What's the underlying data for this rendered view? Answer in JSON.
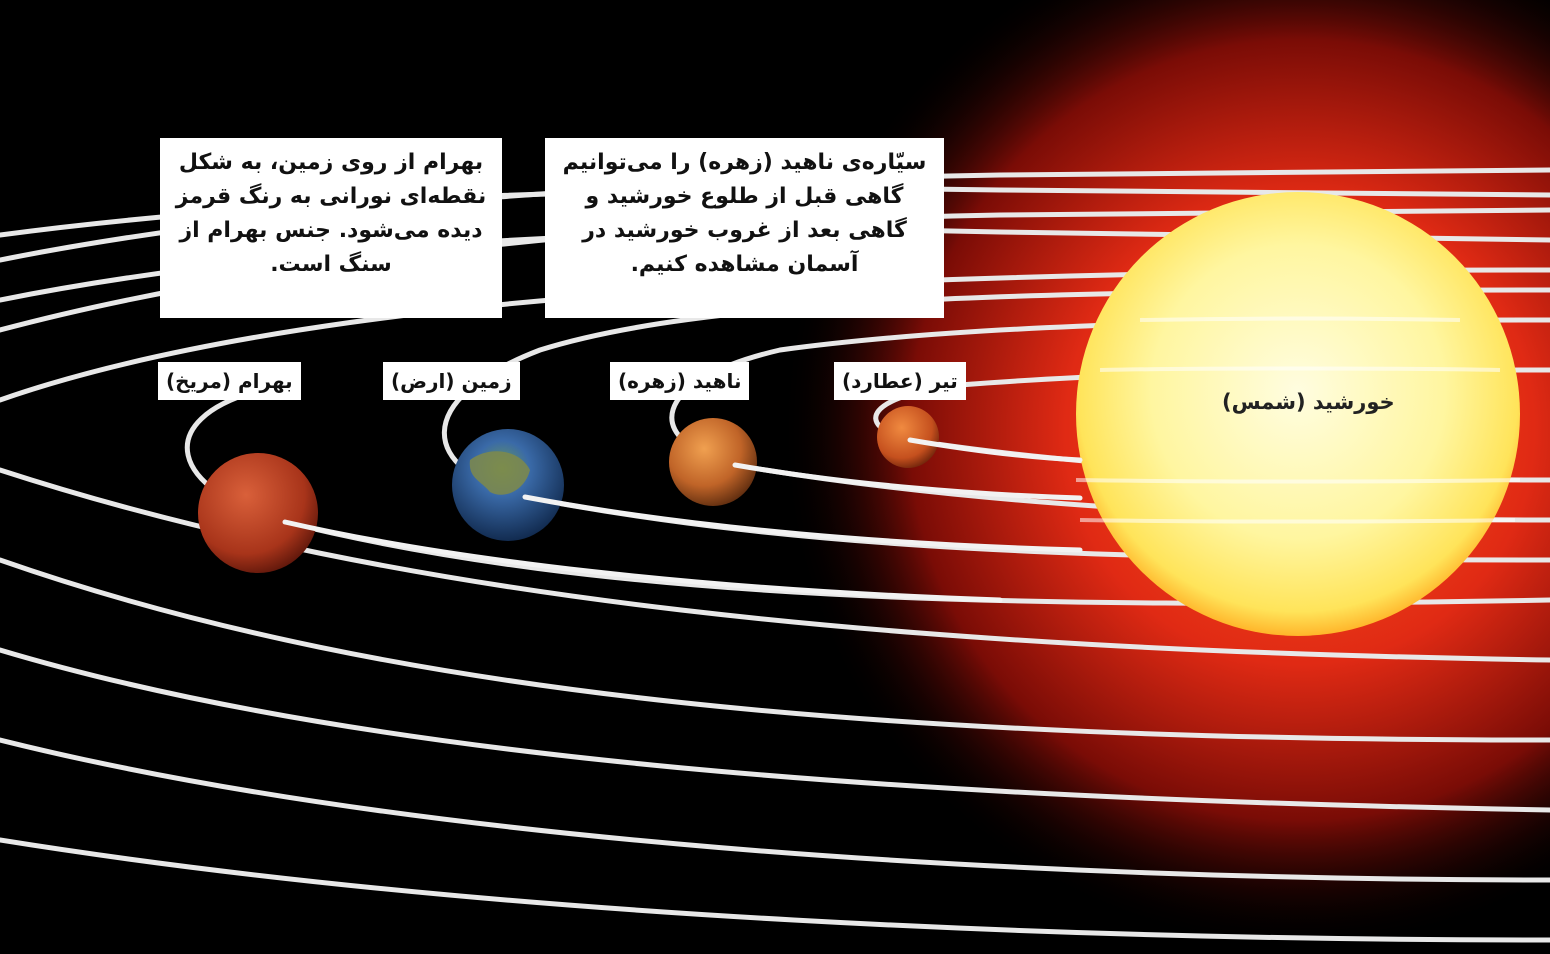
{
  "notes": {
    "mars": "بهرام از روی زمین، به شکل نقطه‌ای نورانی به رنگ قرمز دیده می‌شود. جنس بهرام از سنگ است.",
    "venus": "سیّاره‌ی ناهید (زهره) را می‌توانیم گاهی قبل از طلوع خورشید و گاهی بعد از غروب خورشید در آسمان مشاهده کنیم."
  },
  "labels": {
    "mars": "بهرام (مریخ)",
    "earth": "زمین (ارض)",
    "venus": "ناهید (زهره)",
    "mercury": "تیر (عطارد)",
    "sun": "خورشید (شمس)"
  },
  "colors": {
    "background": "#000000",
    "sun_core": "#fff7a8",
    "sun_corona": "#e0301a",
    "orbit": "#e6e6e6",
    "mars": "#b53a1e",
    "earth": "#2b5fa8",
    "venus": "#c8702e",
    "mercury": "#c7541f"
  }
}
